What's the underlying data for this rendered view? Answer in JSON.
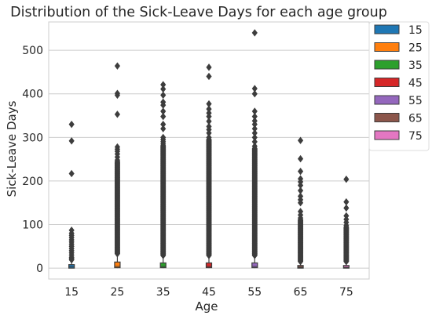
{
  "chart_data": {
    "type": "boxplot",
    "title": "Distribution of the Sick-Leave Days for each age group",
    "xlabel": "Age",
    "ylabel": "Sick-Leave Days",
    "categories": [
      "15",
      "25",
      "35",
      "45",
      "55",
      "65",
      "75"
    ],
    "y_ticks": [
      0,
      100,
      200,
      300,
      400,
      500
    ],
    "ylim": [
      -25,
      565
    ],
    "grid": "horizontal",
    "legend_position": "outside-right",
    "legend": [
      "15",
      "25",
      "35",
      "45",
      "55",
      "65",
      "75"
    ],
    "series": [
      {
        "name": "15",
        "color": "#1f77b4",
        "q1": 0,
        "median": 3,
        "q3": 8,
        "whisker_low": 0,
        "whisker_high": 16,
        "outliers": [
          330,
          292,
          217,
          87,
          80,
          75,
          70,
          65,
          60,
          55,
          50,
          45,
          40,
          35,
          30,
          25,
          22,
          19
        ]
      },
      {
        "name": "25",
        "color": "#ff7f0e",
        "q1": 1,
        "median": 4,
        "q3": 14,
        "whisker_low": 0,
        "whisker_high": 30,
        "outliers": [
          464,
          401,
          397,
          353,
          278,
          273,
          268,
          262,
          255,
          248
        ],
        "outlier_band": [
          33,
          245
        ]
      },
      {
        "name": "35",
        "color": "#2ca02c",
        "q1": 1,
        "median": 4,
        "q3": 12,
        "whisker_low": 0,
        "whisker_high": 26,
        "outliers": [
          421,
          411,
          397,
          381,
          374,
          360,
          348,
          330,
          320,
          300,
          295,
          290,
          285
        ],
        "outlier_band": [
          29,
          282
        ]
      },
      {
        "name": "45",
        "color": "#d62728",
        "q1": 1,
        "median": 4,
        "q3": 12,
        "whisker_low": 0,
        "whisker_high": 26,
        "outliers": [
          461,
          440,
          377,
          365,
          356,
          348,
          337,
          325,
          318,
          310,
          300
        ],
        "outlier_band": [
          29,
          296
        ]
      },
      {
        "name": "55",
        "color": "#9467bd",
        "q1": 1,
        "median": 4,
        "q3": 12,
        "whisker_low": 0,
        "whisker_high": 26,
        "outliers": [
          540,
          412,
          400,
          360,
          348,
          338,
          330,
          320,
          310,
          300,
          290,
          280
        ],
        "outlier_band": [
          29,
          276
        ]
      },
      {
        "name": "65",
        "color": "#8c564b",
        "q1": 0,
        "median": 2,
        "q3": 6,
        "whisker_low": 0,
        "whisker_high": 12,
        "outliers": [
          293,
          251,
          222,
          205,
          198,
          190,
          178,
          165,
          157,
          150,
          130,
          122,
          115
        ],
        "outlier_band": [
          15,
          112
        ]
      },
      {
        "name": "75",
        "color": "#e377c2",
        "q1": 0,
        "median": 2,
        "q3": 6,
        "whisker_low": 0,
        "whisker_high": 12,
        "outliers": [
          204,
          152,
          138,
          120,
          112,
          105,
          98
        ],
        "outlier_band": [
          15,
          95
        ]
      }
    ]
  }
}
